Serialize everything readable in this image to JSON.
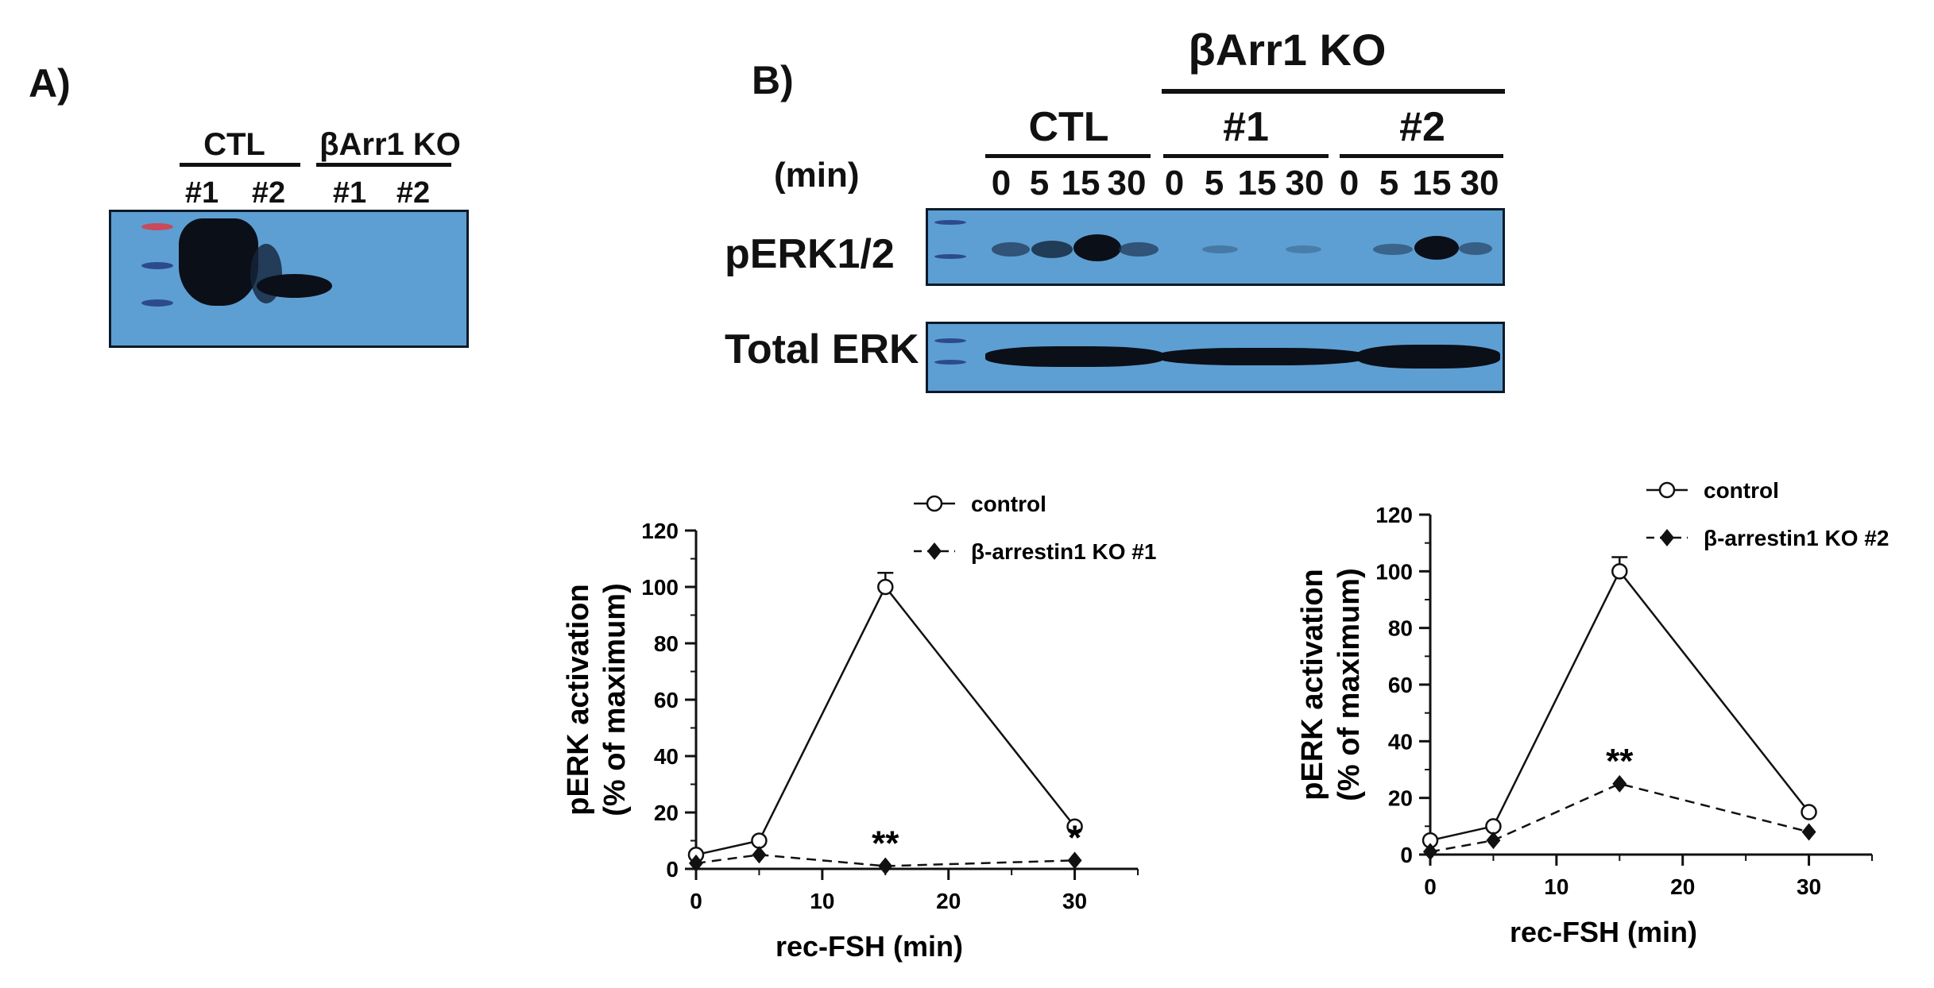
{
  "panel_a": {
    "label": "A)",
    "groups": [
      {
        "label": "CTL",
        "lanes": [
          "#1",
          "#2"
        ]
      },
      {
        "label": "βArr1 KO",
        "lanes": [
          "#1",
          "#2"
        ]
      }
    ]
  },
  "panel_b": {
    "label": "B)",
    "top_group": "βArr1 KO",
    "groups": [
      {
        "label": "CTL"
      },
      {
        "label": "#1"
      },
      {
        "label": "#2"
      }
    ],
    "time_label": "(min)",
    "times": [
      "0",
      "5",
      "15",
      "30",
      "0",
      "5",
      "15",
      "30",
      "0",
      "5",
      "15",
      "30"
    ],
    "rows": [
      "pERK1/2",
      "Total ERK"
    ]
  },
  "chart_data": [
    {
      "type": "line",
      "xlabel": "rec-FSH (min)",
      "ylabel": [
        "pERK activation",
        "(% of maximum)"
      ],
      "xlim": [
        0,
        35
      ],
      "ylim": [
        0,
        120
      ],
      "xticks": [
        0,
        10,
        20,
        30
      ],
      "yticks": [
        0,
        20,
        40,
        60,
        80,
        100,
        120
      ],
      "legend_position": "top-right",
      "x": [
        0,
        5,
        15,
        30
      ],
      "series": [
        {
          "name": "control",
          "values": [
            5,
            10,
            100,
            15
          ],
          "error": [
            0,
            0,
            5,
            0
          ],
          "marker": "open-circle",
          "line": "solid"
        },
        {
          "name": "β-arrestin1 KO #1",
          "values": [
            2,
            5,
            1,
            3
          ],
          "marker": "filled-diamond",
          "line": "dashed"
        }
      ],
      "annotations": [
        {
          "text": "**",
          "x": 15,
          "y": 1
        },
        {
          "text": "*",
          "x": 30,
          "y": 3
        }
      ]
    },
    {
      "type": "line",
      "xlabel": "rec-FSH (min)",
      "ylabel": [
        "pERK activation",
        "(% of maximum)"
      ],
      "xlim": [
        0,
        35
      ],
      "ylim": [
        0,
        120
      ],
      "xticks": [
        0,
        10,
        20,
        30
      ],
      "yticks": [
        0,
        20,
        40,
        60,
        80,
        100,
        120
      ],
      "legend_position": "top-right",
      "x": [
        0,
        5,
        15,
        30
      ],
      "series": [
        {
          "name": "control",
          "values": [
            5,
            10,
            100,
            15
          ],
          "error": [
            0,
            0,
            5,
            0
          ],
          "marker": "open-circle",
          "line": "solid"
        },
        {
          "name": "β-arrestin1 KO #2",
          "values": [
            1,
            5,
            25,
            8
          ],
          "marker": "filled-diamond",
          "line": "dashed"
        }
      ],
      "annotations": [
        {
          "text": "**",
          "x": 15,
          "y": 25
        }
      ]
    }
  ]
}
